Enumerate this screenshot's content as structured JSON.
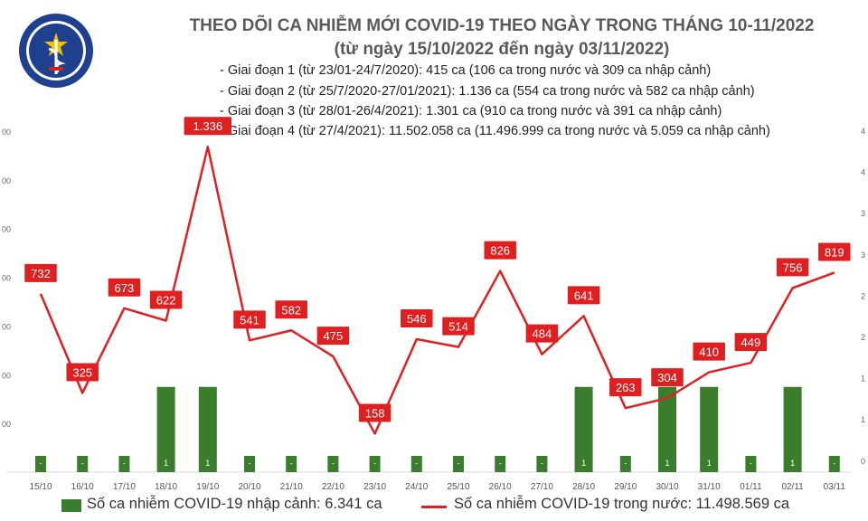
{
  "logo": {
    "top_text": "BỘ Y TẾ",
    "bottom_text": "MINISTRY OF HEALTH"
  },
  "title": "THEO DÕI CA NHIỄM MỚI COVID-19 THEO NGÀY TRONG THÁNG 10-11/2022",
  "subtitle": "(từ ngày 15/10/2022 đến ngày 03/11/2022)",
  "stages": [
    "- Giai đoạn 1 (từ 23/01-24/7/2020): 415 ca (106 ca trong nước và 309 ca nhập cảnh)",
    "- Giai đoạn 2 (từ 25/7/2020-27/01/2021): 1.136 ca (554 ca trong nước và 582 ca nhập cảnh)",
    "- Giai đoạn 3 (từ 28/01-26/4/2021): 1.301 ca (910 ca trong nước và 391 ca nhập cảnh)",
    "- Giai đoạn 4 (từ 27/4/2021): 11.502.058 ca (11.496.999 ca trong nước và 5.059 ca nhập cảnh)"
  ],
  "chart_data": {
    "type": "bar+line",
    "categories": [
      "15/10",
      "16/10",
      "17/10",
      "18/10",
      "19/10",
      "20/10",
      "21/10",
      "22/10",
      "23/10",
      "24/10",
      "25/10",
      "26/10",
      "27/10",
      "28/10",
      "29/10",
      "30/10",
      "31/10",
      "01/11",
      "02/11",
      "03/11"
    ],
    "series": [
      {
        "name": "Số ca nhiễm COVID-19 nhập cảnh: 6.341 ca",
        "type": "bar",
        "axis": "right",
        "color": "#3a7d2c",
        "values": [
          0,
          0,
          0,
          1,
          1,
          0,
          0,
          0,
          0,
          0,
          0,
          0,
          0,
          1,
          0,
          1,
          1,
          0,
          1,
          0
        ],
        "data_labels": [
          "-",
          "-",
          "-",
          "1",
          "1",
          "-",
          "-",
          "-",
          "-",
          "-",
          "-",
          "-",
          "-",
          "1",
          "-",
          "1",
          "1",
          "-",
          "1",
          "-"
        ]
      },
      {
        "name": "Số ca nhiễm COVID-19 trong nước: 11.498.569 ca",
        "type": "line",
        "axis": "left",
        "color": "#e02020",
        "values": [
          732,
          325,
          673,
          622,
          1336,
          541,
          582,
          475,
          158,
          546,
          514,
          826,
          484,
          641,
          263,
          304,
          410,
          449,
          756,
          819
        ],
        "data_labels": [
          "732",
          "325",
          "673",
          "622",
          "1.336",
          "541",
          "582",
          "475",
          "158",
          "546",
          "514",
          "826",
          "484",
          "641",
          "263",
          "304",
          "410",
          "449",
          "756",
          "819"
        ]
      }
    ],
    "y_left_ticks": [
      "00",
      "00",
      "00",
      "00",
      "00",
      "00",
      "00"
    ],
    "y_right_ticks": [
      "4",
      "4",
      "3",
      "3",
      "2",
      "2",
      "1",
      "1",
      "0"
    ],
    "ylim_left": [
      0,
      1400
    ],
    "ylim_right": [
      0,
      4
    ],
    "grid": false
  }
}
